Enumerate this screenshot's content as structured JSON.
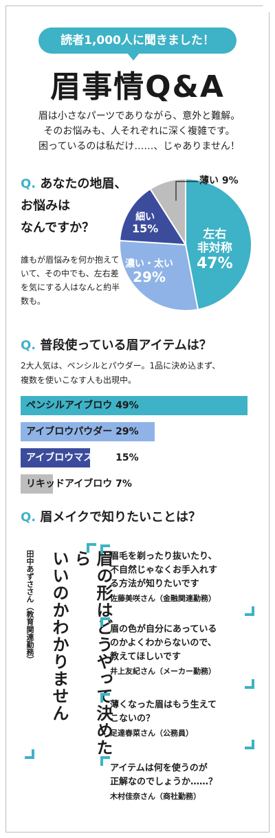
{
  "header": {
    "banner": "読者1,000人に聞きました！",
    "title": "眉事情Q&A"
  },
  "intro": [
    "眉は小さなパーツでありながら、意外と難解。",
    "そのお悩みも、人それぞれに深く複雑です。",
    "困っているのは私だけ……、じゃありません！"
  ],
  "q1": {
    "mark": "Q.",
    "lines": [
      "あなたの地眉、",
      "お悩みは",
      "なんですか？"
    ],
    "desc": "誰もが眉悩みを何か抱えていて、その中でも、左右差を気にする人はなんと約半数も。"
  },
  "q2": {
    "mark": "Q.",
    "text": "普段使っている眉アイテムは？",
    "desc": [
      "2大人気は、ペンシルとパウダー。1品に決め込まず、",
      "複数を使いこなす人も出現中。"
    ]
  },
  "q3": {
    "mark": "Q.",
    "text": "眉メイクで知りたいことは？"
  },
  "chart_data": [
    {
      "type": "pie",
      "categories": [
        "左右非対称",
        "濃い・太い",
        "細い",
        "薄い"
      ],
      "values": [
        47,
        29,
        15,
        9
      ],
      "labels": [
        {
          "name": [
            "左右",
            "非対称"
          ],
          "pct": "47%"
        },
        {
          "name": [
            "濃い・太い"
          ],
          "pct": "29%"
        },
        {
          "name": [
            "細い"
          ],
          "pct": "15%"
        },
        {
          "name": [
            "薄い"
          ],
          "pct": "9%"
        }
      ],
      "colors": [
        "#3eb2c6",
        "#8fb3e6",
        "#3c4c9c",
        "#bdbdbd"
      ]
    },
    {
      "type": "bar",
      "categories": [
        "ペンシルアイブロウ",
        "アイブロウパウダー",
        "アイブロウマスカラ",
        "リキッドアイブロウ"
      ],
      "values": [
        49,
        29,
        15,
        7
      ],
      "labels": [
        "49%",
        "29%",
        "15%",
        "7%"
      ],
      "colors": [
        "#3eb2c6",
        "#8fb3e6",
        "#3c4c9c",
        "#bdbdbd"
      ]
    }
  ],
  "answers": {
    "featured": {
      "text": [
        "眉の形はどうやって決めたら",
        "いいのかわかりません"
      ],
      "by": "田中あずささん（教育関連勤務）"
    },
    "quotes": [
      {
        "text": [
          "眉毛を剃ったり抜いたり、",
          "不自然じゃなくお手入れす",
          "る方法が知りたいです"
        ],
        "by": "佐藤美咲さん（金融関連勤務）"
      },
      {
        "text": [
          "眉の色が自分にあっている",
          "のかよくわからないので、",
          "教えてほしいです"
        ],
        "by": "井上友紀さん（メーカー勤務）"
      },
      {
        "text": [
          "薄くなった眉はもう生えて",
          "こないの？"
        ],
        "by": "足達春菜さん（公務員）"
      },
      {
        "text": [
          "アイテムは何を使うのが",
          "正解なのでしょうか……？"
        ],
        "by": "木村佳奈さん（商社勤務）"
      }
    ]
  }
}
